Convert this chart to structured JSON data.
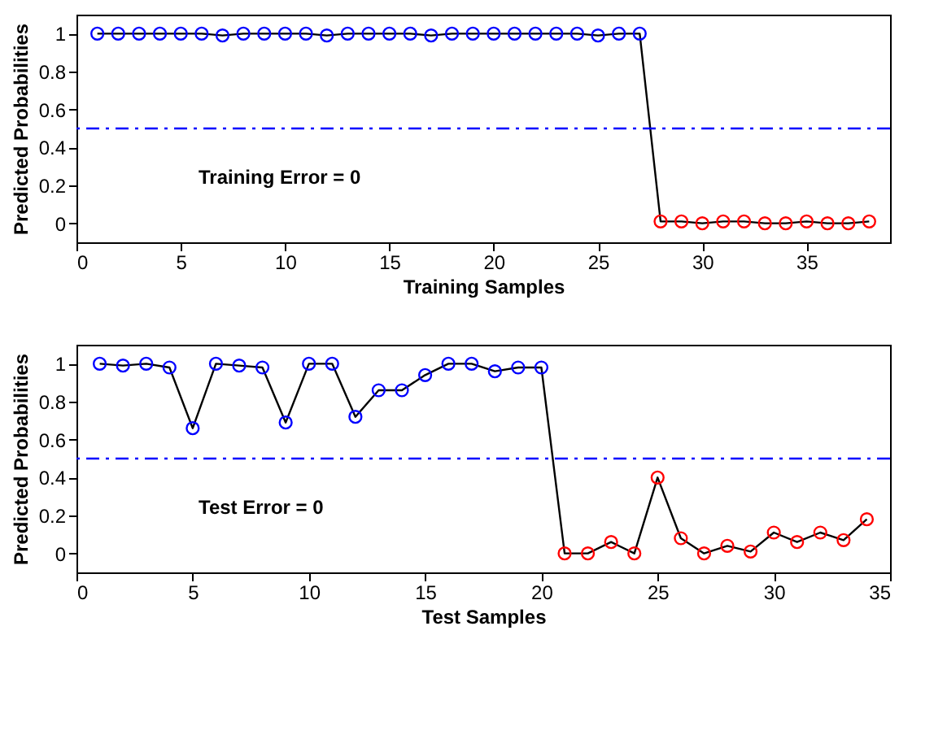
{
  "chart_data": [
    {
      "type": "line",
      "xlabel": "Training Samples",
      "ylabel": "Predicted Probabilities",
      "xlim": [
        0,
        39
      ],
      "xticks": [
        0,
        5,
        10,
        15,
        20,
        25,
        30,
        35
      ],
      "ylim": [
        -0.1,
        1.1
      ],
      "yticks": [
        0,
        0.2,
        0.4,
        0.6,
        0.8,
        1
      ],
      "grid": false,
      "annotations": [
        "Training Error = 0"
      ],
      "ref_lines": [
        {
          "axis": "y",
          "value": 0.5,
          "color": "#0000ff",
          "line_style": "dashdot"
        }
      ],
      "series": [
        {
          "color": "#000000",
          "marker": "none",
          "line_style": "solid",
          "x": [
            1,
            2,
            3,
            4,
            5,
            6,
            7,
            8,
            9,
            10,
            11,
            12,
            13,
            14,
            15,
            16,
            17,
            18,
            19,
            20,
            21,
            22,
            23,
            24,
            25,
            26,
            27,
            28,
            29,
            30,
            31,
            32,
            33,
            34,
            35,
            36,
            37,
            38
          ],
          "values": [
            1,
            1,
            1,
            1,
            1,
            1,
            0.99,
            1,
            1,
            1,
            1,
            0.99,
            1,
            1,
            1,
            1,
            0.99,
            1,
            1,
            1,
            1,
            1,
            1,
            1,
            0.99,
            1,
            1,
            0.01,
            0.01,
            0,
            0.01,
            0.01,
            0,
            0,
            0.01,
            0,
            0,
            0.01
          ]
        },
        {
          "type": "scatter",
          "marker": "circle",
          "color": "#0000ff",
          "x": [
            1,
            2,
            3,
            4,
            5,
            6,
            7,
            8,
            9,
            10,
            11,
            12,
            13,
            14,
            15,
            16,
            17,
            18,
            19,
            20,
            21,
            22,
            23,
            24,
            25,
            26,
            27
          ],
          "values": [
            1,
            1,
            1,
            1,
            1,
            1,
            0.99,
            1,
            1,
            1,
            1,
            0.99,
            1,
            1,
            1,
            1,
            0.99,
            1,
            1,
            1,
            1,
            1,
            1,
            1,
            0.99,
            1,
            1
          ]
        },
        {
          "type": "scatter",
          "marker": "circle",
          "color": "#ff0000",
          "x": [
            28,
            29,
            30,
            31,
            32,
            33,
            34,
            35,
            36,
            37,
            38
          ],
          "values": [
            0.01,
            0.01,
            0,
            0.01,
            0.01,
            0,
            0,
            0.01,
            0,
            0,
            0.01
          ]
        }
      ]
    },
    {
      "type": "line",
      "xlabel": "Test Samples",
      "ylabel": "Predicted Probabilities",
      "xlim": [
        0,
        35
      ],
      "xticks": [
        0,
        5,
        10,
        15,
        20,
        25,
        30,
        35
      ],
      "ylim": [
        -0.1,
        1.1
      ],
      "yticks": [
        0,
        0.2,
        0.4,
        0.6,
        0.8,
        1
      ],
      "grid": false,
      "annotations": [
        "Test Error = 0"
      ],
      "ref_lines": [
        {
          "axis": "y",
          "value": 0.5,
          "color": "#0000ff",
          "line_style": "dashdot"
        }
      ],
      "series": [
        {
          "color": "#000000",
          "marker": "none",
          "line_style": "solid",
          "x": [
            1,
            2,
            3,
            4,
            5,
            6,
            7,
            8,
            9,
            10,
            11,
            12,
            13,
            14,
            15,
            16,
            17,
            18,
            19,
            20,
            21,
            22,
            23,
            24,
            25,
            26,
            27,
            28,
            29,
            30,
            31,
            32,
            33,
            34
          ],
          "values": [
            1,
            0.99,
            1,
            0.98,
            0.66,
            1,
            0.99,
            0.98,
            0.69,
            1,
            1,
            0.72,
            0.86,
            0.86,
            0.94,
            1,
            1,
            0.96,
            0.98,
            0.98,
            0,
            0,
            0.06,
            0,
            0.4,
            0.08,
            0,
            0.04,
            0.01,
            0.11,
            0.06,
            0.11,
            0.07,
            0.18
          ]
        },
        {
          "type": "scatter",
          "marker": "circle",
          "color": "#0000ff",
          "x": [
            1,
            2,
            3,
            4,
            5,
            6,
            7,
            8,
            9,
            10,
            11,
            12,
            13,
            14,
            15,
            16,
            17,
            18,
            19,
            20
          ],
          "values": [
            1,
            0.99,
            1,
            0.98,
            0.66,
            1,
            0.99,
            0.98,
            0.69,
            1,
            1,
            0.72,
            0.86,
            0.86,
            0.94,
            1,
            1,
            0.96,
            0.98,
            0.98
          ]
        },
        {
          "type": "scatter",
          "marker": "circle",
          "color": "#ff0000",
          "x": [
            21,
            22,
            23,
            24,
            25,
            26,
            27,
            28,
            29,
            30,
            31,
            32,
            33,
            34
          ],
          "values": [
            0,
            0,
            0.06,
            0,
            0.4,
            0.08,
            0,
            0.04,
            0.01,
            0.11,
            0.06,
            0.11,
            0.07,
            0.18
          ]
        }
      ]
    }
  ]
}
